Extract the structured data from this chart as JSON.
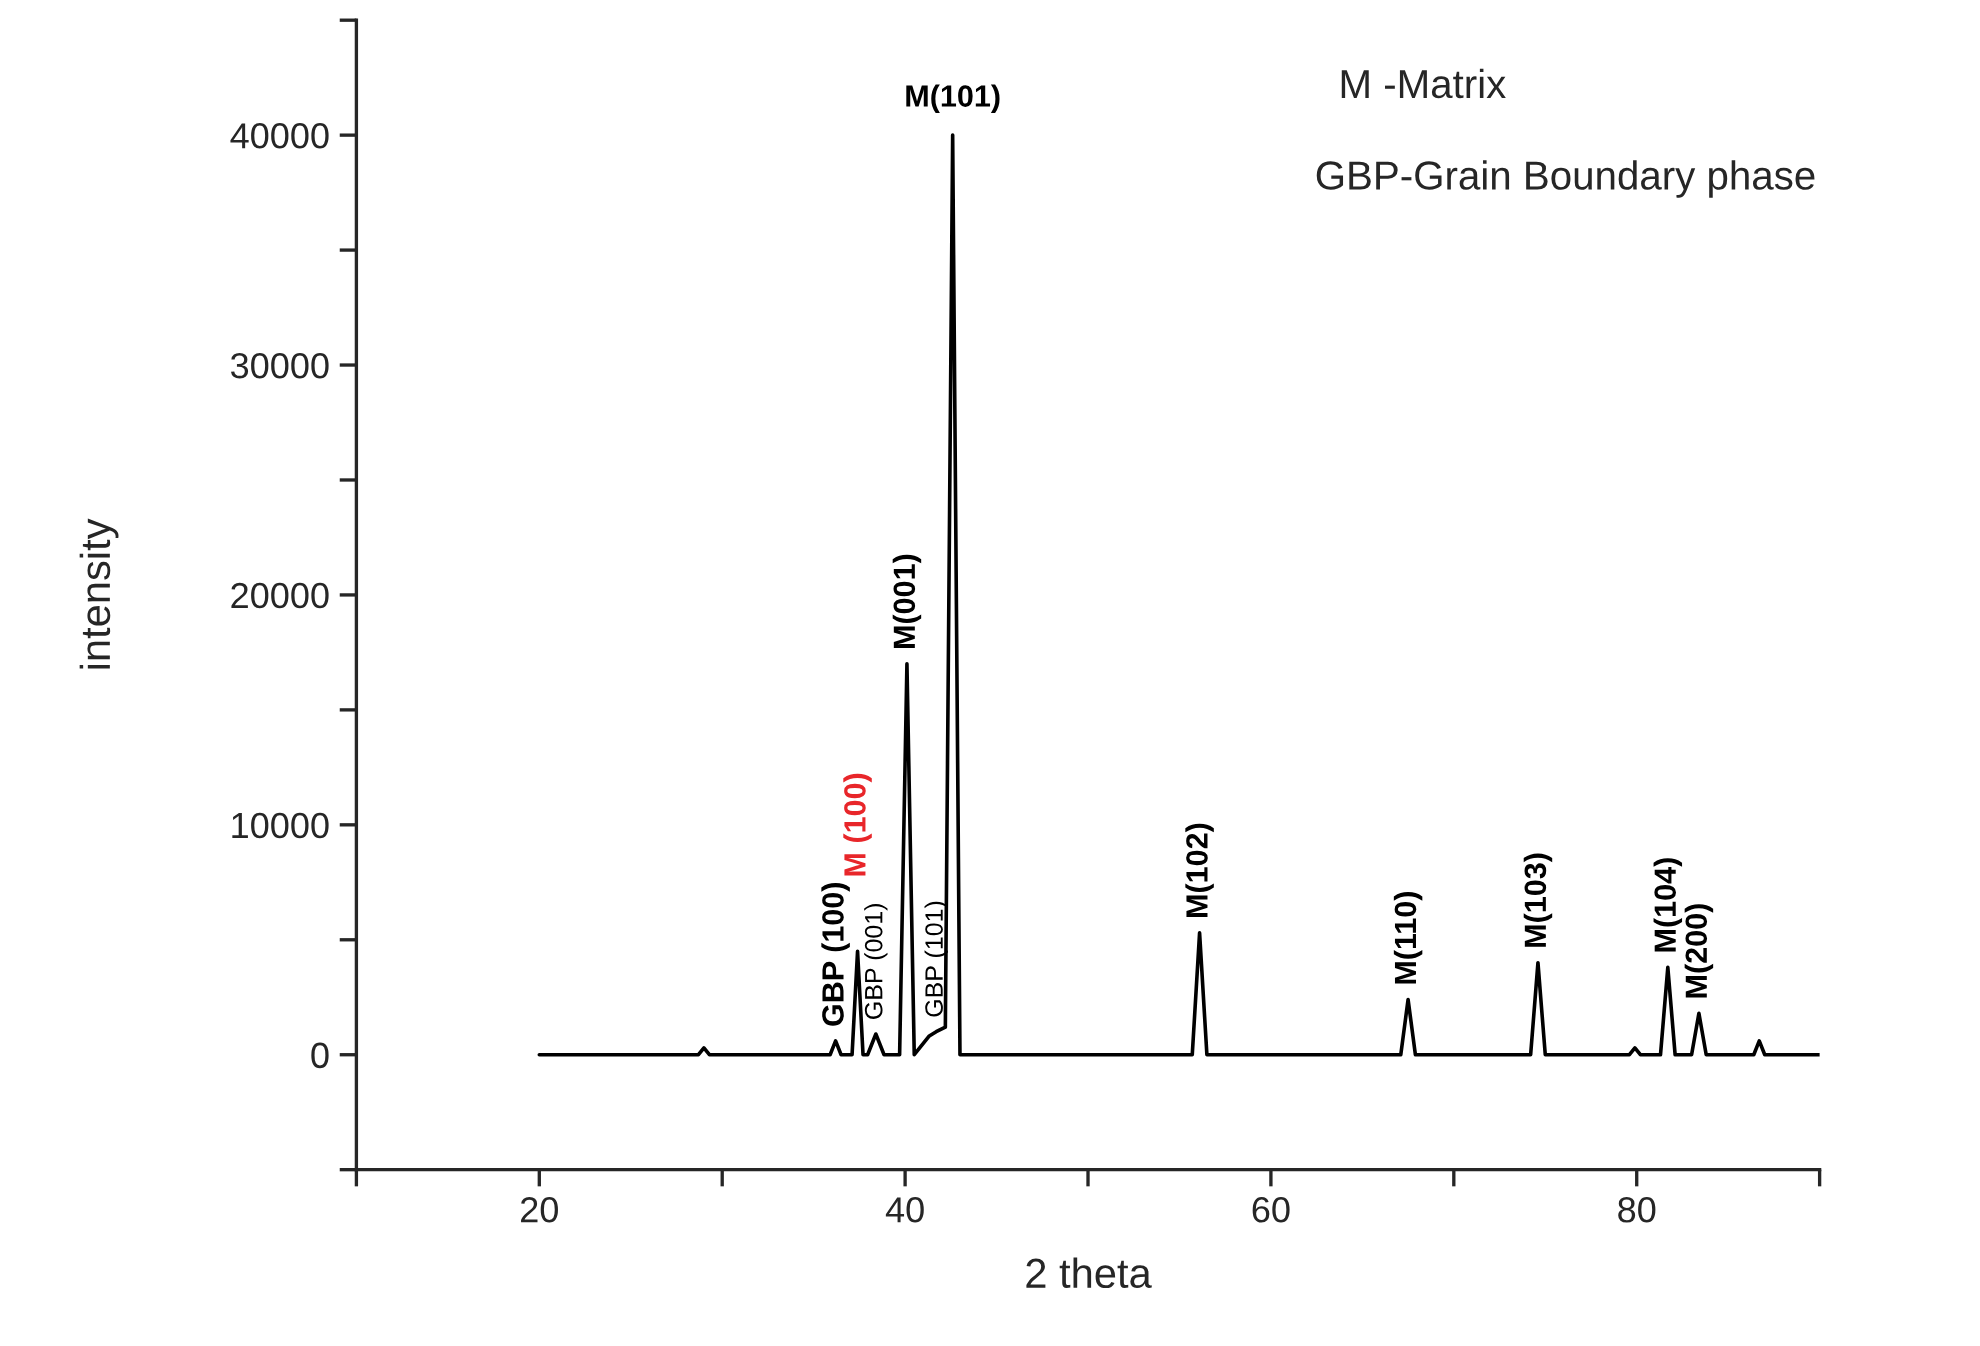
{
  "chart_data": {
    "type": "line",
    "xlabel": "2 theta",
    "ylabel": "intensity",
    "series": [
      {
        "color": "#000000",
        "x": [
          20,
          25,
          28.7,
          29.0,
          29.3,
          33,
          35.9,
          36.2,
          36.5,
          37.1,
          37.4,
          37.7,
          37.95,
          38.4,
          38.85,
          39.7,
          40.1,
          40.5,
          41.3,
          41.7,
          42.2,
          42.6,
          43.0,
          43.5,
          48,
          55.7,
          56.1,
          56.5,
          60,
          61,
          67.1,
          67.5,
          67.9,
          72,
          74.2,
          74.6,
          75.0,
          79.6,
          79.9,
          80.2,
          81.3,
          81.7,
          82.1,
          83.0,
          83.4,
          83.8,
          86.4,
          86.7,
          87.0,
          90
        ],
        "values": [
          0,
          0,
          0,
          300,
          0,
          0,
          0,
          600,
          0,
          0,
          4500,
          0,
          0,
          900,
          0,
          0,
          17000,
          0,
          800,
          1000,
          1200,
          40000,
          0,
          0,
          0,
          0,
          5300,
          0,
          0,
          0,
          0,
          2400,
          0,
          0,
          0,
          4000,
          0,
          0,
          300,
          0,
          0,
          3800,
          0,
          0,
          1800,
          0,
          0,
          600,
          0,
          0
        ]
      }
    ],
    "xlim": [
      10,
      90
    ],
    "xticks": [
      {
        "value": 10,
        "label": null
      },
      20,
      {
        "value": 30,
        "label": null
      },
      40,
      {
        "value": 50,
        "label": null
      },
      60,
      {
        "value": 70,
        "label": null
      },
      80,
      {
        "value": 90,
        "label": null
      }
    ],
    "ylim": [
      -5000,
      45000
    ],
    "yticks": [
      {
        "value": -5000,
        "label": null
      },
      0,
      {
        "value": 5000,
        "label": null
      },
      10000,
      {
        "value": 15000,
        "label": null
      },
      20000,
      {
        "value": 25000,
        "label": null
      },
      30000,
      {
        "value": 35000,
        "label": null
      },
      40000,
      {
        "value": 45000,
        "label": null
      }
    ],
    "grid": false,
    "marker": "none",
    "line_style": "solid",
    "annotations": [
      {
        "text": "GBP (100)",
        "x": 36.2,
        "y": 600
      },
      {
        "text": "M (100)",
        "x": 37.4,
        "y": 4500
      },
      {
        "text": "GBP (001)",
        "x": 38.4,
        "y": 900
      },
      {
        "text": "M(001)",
        "x": 40.1,
        "y": 17000
      },
      {
        "text": "GBP (101)",
        "x": 41.7,
        "y": 1000
      },
      {
        "text": "M(101)",
        "x": 42.6,
        "y": 40000
      },
      {
        "text": "M(102)",
        "x": 56.1,
        "y": 5300
      },
      {
        "text": "M(110)",
        "x": 67.5,
        "y": 2400
      },
      {
        "text": "M(103)",
        "x": 74.6,
        "y": 4000
      },
      {
        "text": "M(104)",
        "x": 81.7,
        "y": 3800
      },
      {
        "text": "M(200)",
        "x": 83.4,
        "y": 1800
      },
      "M -Matrix",
      "GBP-Grain Boundary phase"
    ]
  }
}
